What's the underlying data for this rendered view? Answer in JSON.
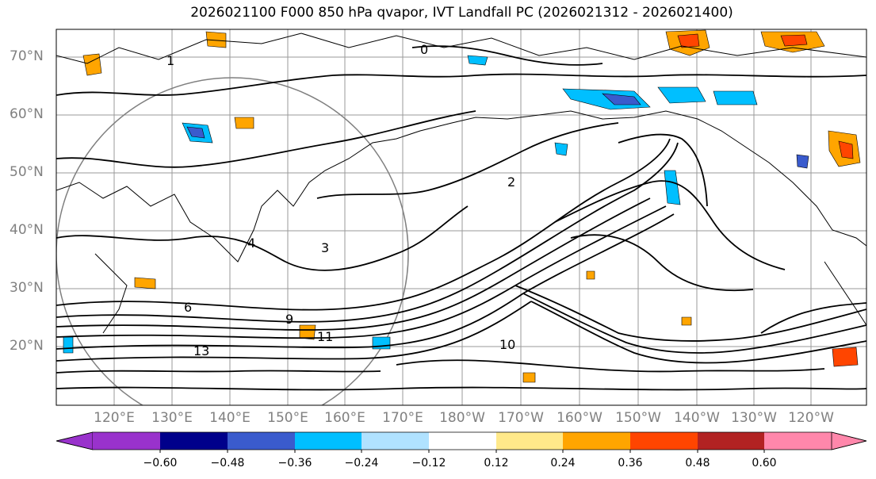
{
  "title": "2026021100 F000 850 hPa qvapor, IVT Landfall PC (2026021312 - 2026021400)",
  "lat_labels": [
    "70°N",
    "60°N",
    "50°N",
    "40°N",
    "30°N",
    "20°N"
  ],
  "lon_labels": [
    "120°E",
    "130°E",
    "140°E",
    "150°E",
    "160°E",
    "170°E",
    "180°W",
    "170°W",
    "160°W",
    "150°W",
    "140°W",
    "130°W",
    "120°W"
  ],
  "contour_labels": [
    "0",
    "1",
    "2",
    "3",
    "4",
    "6",
    "9",
    "10",
    "11",
    "13"
  ],
  "colorbar": {
    "ticks": [
      "−0.60",
      "−0.48",
      "−0.36",
      "−0.24",
      "−0.12",
      "0.12",
      "0.24",
      "0.36",
      "0.48",
      "0.60"
    ],
    "colors": [
      "#9932cc",
      "#00008b",
      "#3a5bcd",
      "#00bfff",
      "#b0e2ff",
      "#ffffff",
      "#ffe98a",
      "#ffa500",
      "#ff4500",
      "#b22222",
      "#ff87ab",
      "#ff87ab"
    ]
  }
}
